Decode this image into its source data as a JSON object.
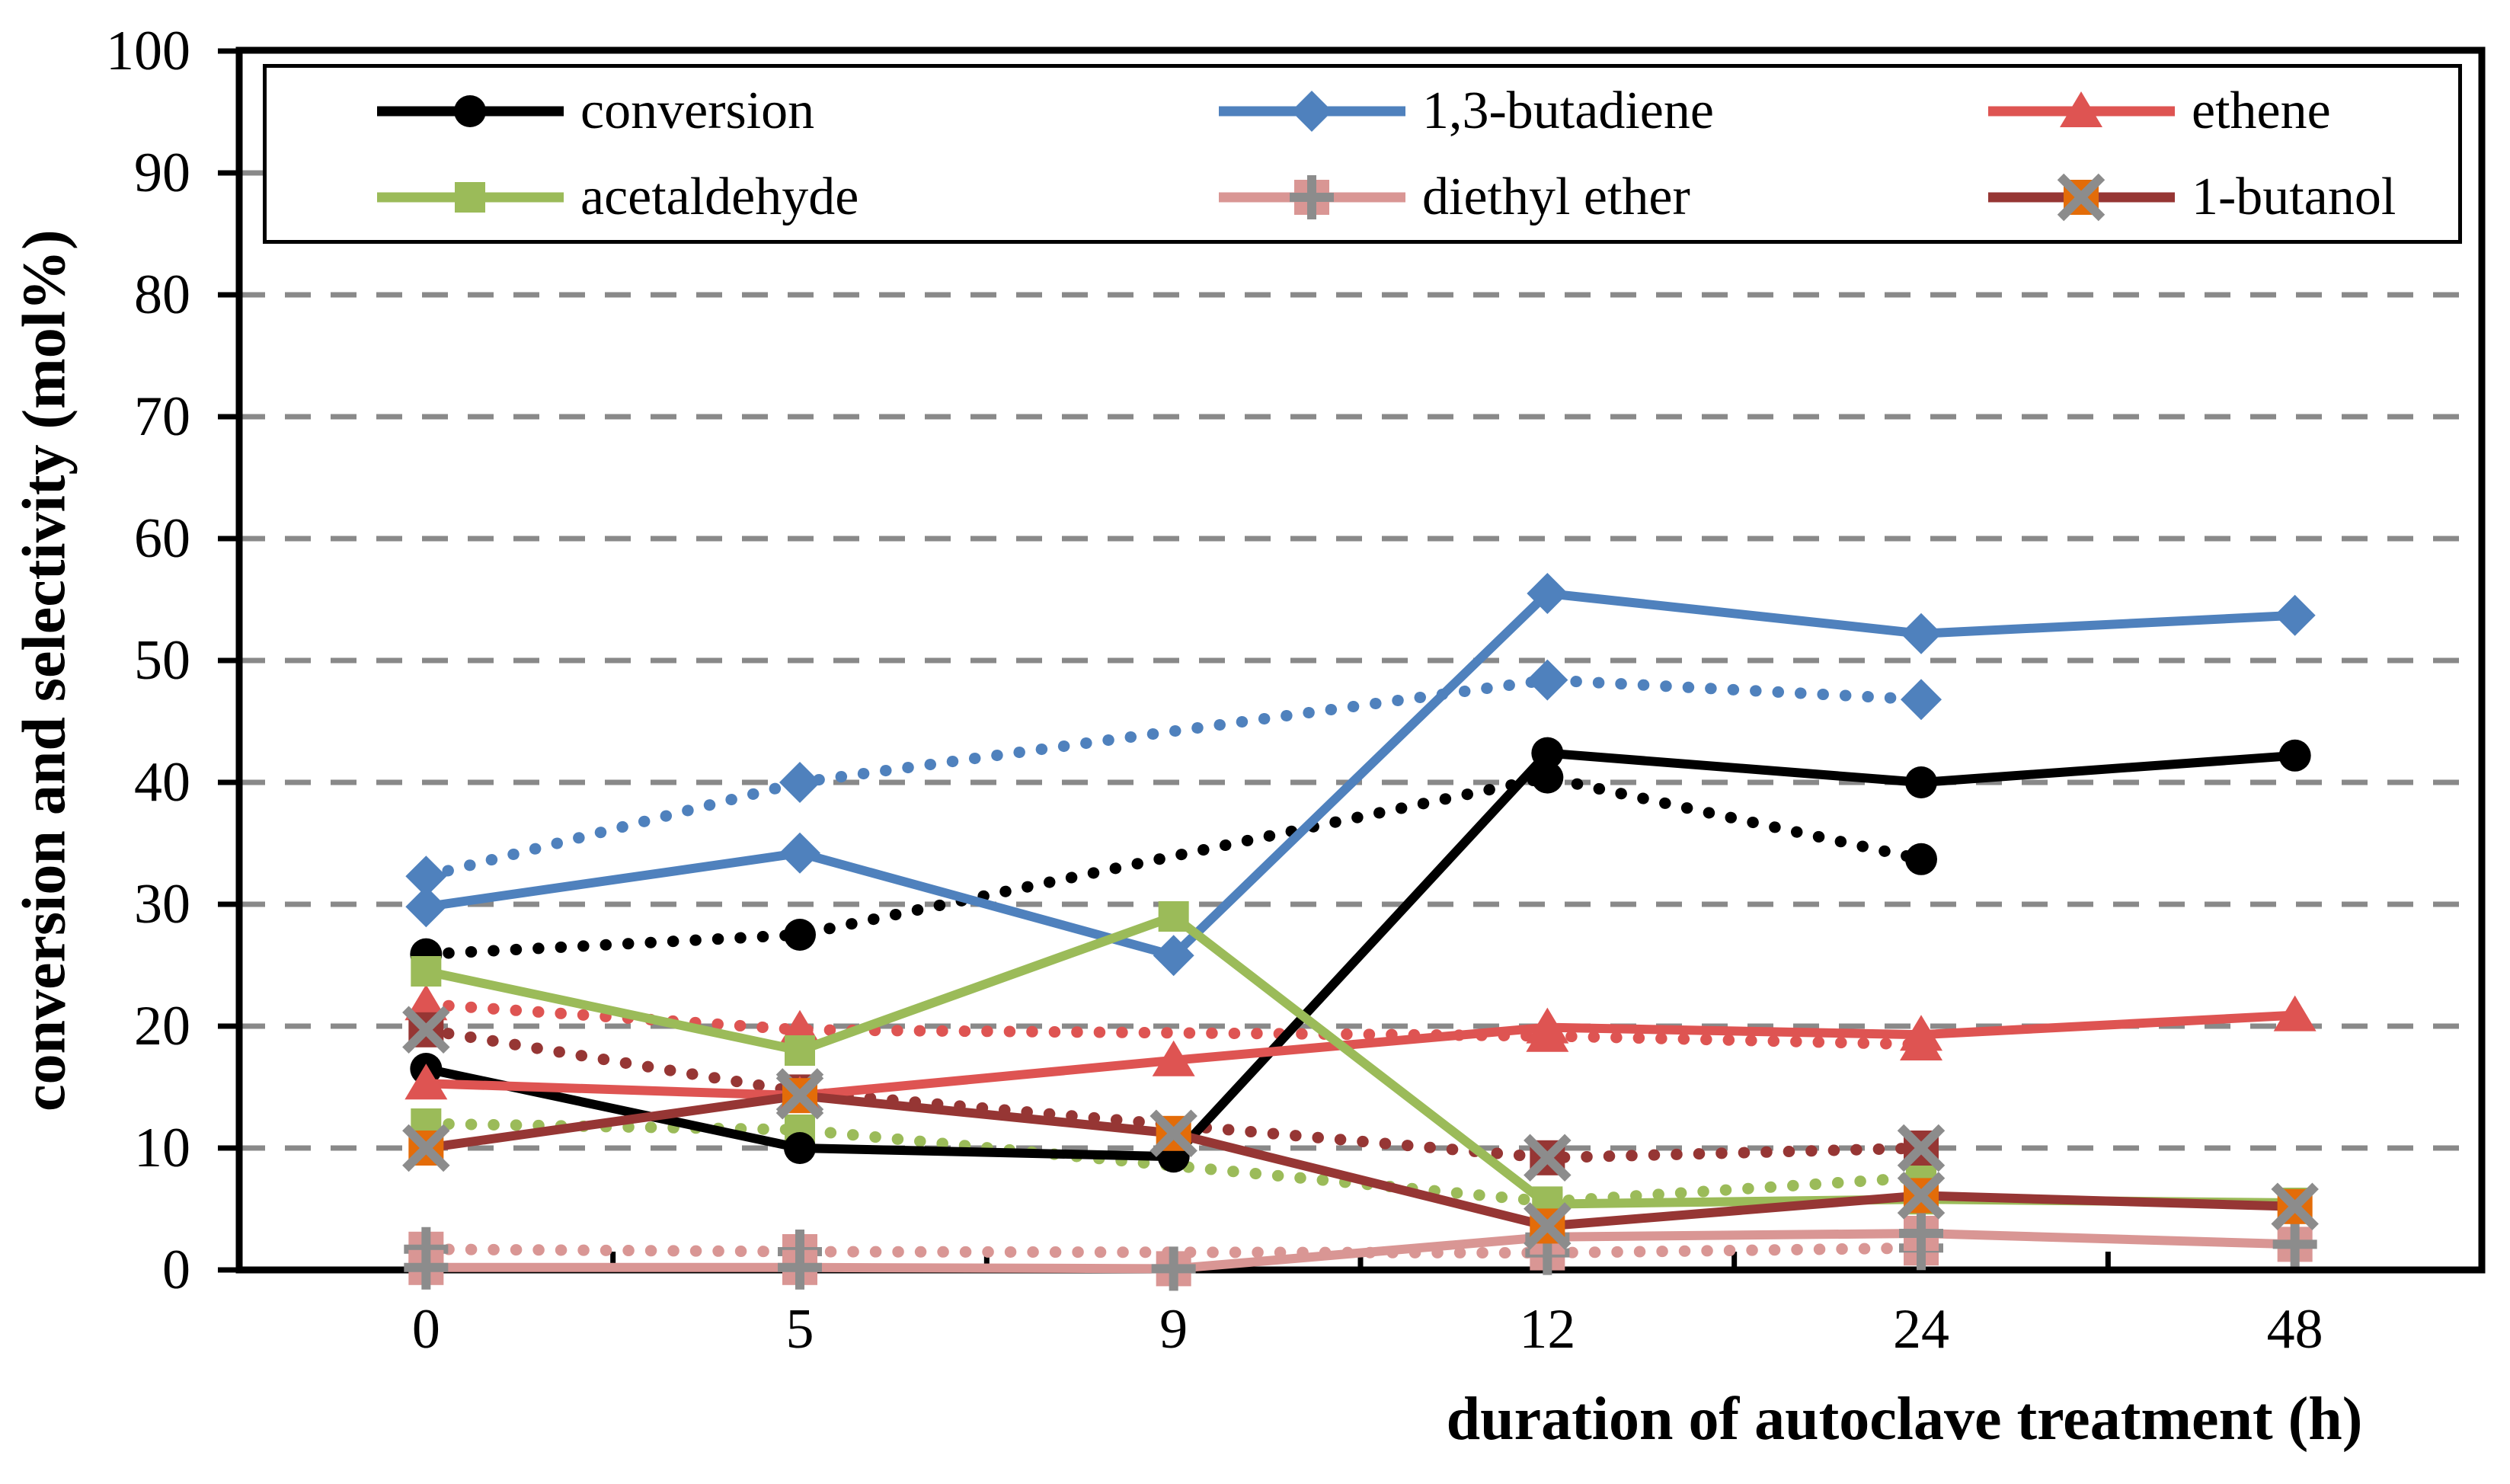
{
  "chart_data": {
    "type": "line",
    "title": "",
    "xlabel": "duration of autoclave treatment  (h)",
    "ylabel": "conversion and selectivity  (mol%)",
    "categories": [
      0,
      5,
      9,
      12,
      24,
      48
    ],
    "x_tick_labels": [
      "0",
      "5",
      "9",
      "12",
      "24",
      "48"
    ],
    "y_tick_labels": [
      "0",
      "10",
      "20",
      "30",
      "40",
      "50",
      "60",
      "70",
      "80",
      "90",
      "100"
    ],
    "ylim": [
      0,
      100
    ],
    "grid": "horizontal-dashed-gray",
    "colors": {
      "conversion": "#000000",
      "butadiene": "#4F81BD",
      "ethene": "#DE5452",
      "acetaldehyde": "#9BBB59",
      "diethyl_ether": "#D99694",
      "butanol_line": "#963634",
      "butanol_solid_marker": "#E36C09",
      "marker_glyph_gray": "#8C8C8C",
      "gridline_gray": "#898989"
    },
    "legend": {
      "position": "top-inside",
      "columns": 3,
      "items": [
        {
          "label": "conversion",
          "color": "#000000",
          "marker": "circle"
        },
        {
          "label": "1,3-butadiene",
          "color": "#4F81BD",
          "marker": "diamond"
        },
        {
          "label": "ethene",
          "color": "#DE5452",
          "marker": "triangle"
        },
        {
          "label": "acetaldehyde",
          "color": "#9BBB59",
          "marker": "square"
        },
        {
          "label": "diethyl ether",
          "color": "#D99694",
          "marker": "square-plus"
        },
        {
          "label": "1-butanol",
          "color": "#963634",
          "marker": "square-x",
          "marker_fill": "#E36C09"
        }
      ]
    },
    "series": [
      {
        "name": "conversion (dotted)",
        "color": "#000000",
        "line": "dotted",
        "marker": "circle",
        "x": [
          0,
          5,
          12,
          24
        ],
        "values": [
          25.9,
          27.5,
          40.4,
          33.7
        ]
      },
      {
        "name": "1,3-butadiene (dotted)",
        "color": "#4F81BD",
        "line": "dotted",
        "marker": "diamond",
        "x": [
          0,
          5,
          12,
          24
        ],
        "values": [
          32.3,
          40.0,
          48.4,
          46.8
        ]
      },
      {
        "name": "ethene (dotted)",
        "color": "#DE5452",
        "line": "dotted",
        "marker": "triangle",
        "x": [
          0,
          5,
          12,
          24
        ],
        "values": [
          21.8,
          19.7,
          19.2,
          18.5
        ]
      },
      {
        "name": "acetaldehyde (dotted)",
        "color": "#9BBB59",
        "line": "dotted",
        "marker": "square",
        "x": [
          0,
          5,
          12,
          24
        ],
        "values": [
          12.0,
          11.5,
          5.6,
          7.6
        ]
      },
      {
        "name": "diethyl ether (dotted)",
        "color": "#D99694",
        "line": "dotted",
        "marker": "square-plus",
        "x": [
          0,
          5,
          12,
          24
        ],
        "values": [
          1.7,
          1.5,
          1.4,
          1.8
        ]
      },
      {
        "name": "1-butanol (dotted)",
        "color": "#963634",
        "line": "dotted",
        "marker": "square-x",
        "marker_fill": "#963634",
        "x": [
          0,
          5,
          12,
          24
        ],
        "values": [
          19.7,
          14.6,
          9.2,
          10.0
        ]
      },
      {
        "name": "conversion",
        "color": "#000000",
        "line": "solid",
        "marker": "circle",
        "x": [
          0,
          5,
          9,
          12,
          24,
          48
        ],
        "values": [
          16.5,
          10.0,
          9.3,
          42.4,
          40.0,
          42.2
        ]
      },
      {
        "name": "1,3-butadiene",
        "color": "#4F81BD",
        "line": "solid",
        "marker": "diamond",
        "x": [
          0,
          5,
          9,
          12,
          24,
          48
        ],
        "values": [
          29.8,
          34.2,
          25.8,
          55.5,
          52.2,
          53.7
        ]
      },
      {
        "name": "ethene",
        "color": "#DE5452",
        "line": "solid",
        "marker": "triangle",
        "x": [
          0,
          5,
          9,
          12,
          24,
          48
        ],
        "values": [
          15.3,
          14.3,
          17.2,
          19.9,
          19.3,
          20.9
        ]
      },
      {
        "name": "acetaldehyde",
        "color": "#9BBB59",
        "line": "solid",
        "marker": "square",
        "x": [
          0,
          5,
          9,
          12,
          24,
          48
        ],
        "values": [
          24.5,
          18.0,
          29.0,
          5.4,
          5.8,
          5.5
        ]
      },
      {
        "name": "diethyl ether",
        "color": "#D99694",
        "line": "solid",
        "marker": "square-plus",
        "x": [
          0,
          5,
          9,
          12,
          24,
          48
        ],
        "values": [
          0.2,
          0.2,
          0.1,
          2.7,
          3.0,
          2.1
        ]
      },
      {
        "name": "1-butanol",
        "color": "#963634",
        "line": "solid",
        "marker": "square-x",
        "marker_fill": "#E36C09",
        "x": [
          0,
          5,
          9,
          12,
          24,
          48
        ],
        "values": [
          10.0,
          14.3,
          11.2,
          3.6,
          6.1,
          5.2
        ]
      }
    ]
  }
}
